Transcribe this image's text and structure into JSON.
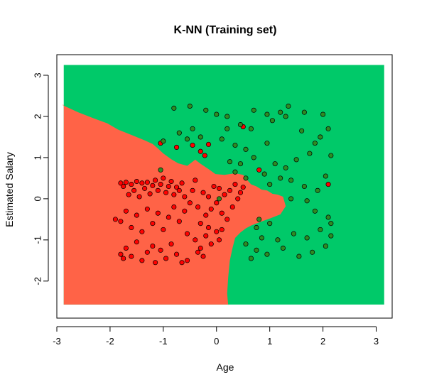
{
  "chart_data": {
    "type": "scatter",
    "title": "K-NN (Training set)",
    "xlabel": "Age",
    "ylabel": "Estimated Salary",
    "xlim": [
      -3,
      3.3
    ],
    "ylim": [
      -2.9,
      3.5
    ],
    "x_ticks": [
      -3,
      -2,
      -1,
      0,
      1,
      2,
      3
    ],
    "y_ticks": [
      -2,
      -1,
      0,
      1,
      2,
      3
    ],
    "x_tick_labels": [
      "-3",
      "-2",
      "-1",
      "0",
      "1",
      "2",
      "3"
    ],
    "y_tick_labels": [
      "-2",
      "-1",
      "0",
      "1",
      "2",
      "3"
    ],
    "grid": false,
    "legend": "none",
    "background_regions": {
      "region_0_color": "#ff6347",
      "region_1_color": "#00c969",
      "boundary": [
        [
          -2.9,
          2.28
        ],
        [
          -2.6,
          2.1
        ],
        [
          -2.3,
          1.95
        ],
        [
          -2.05,
          1.83
        ],
        [
          -1.85,
          1.68
        ],
        [
          -1.6,
          1.55
        ],
        [
          -1.35,
          1.42
        ],
        [
          -1.2,
          1.33
        ],
        [
          -1.1,
          1.22
        ],
        [
          -1.0,
          1.1
        ],
        [
          -0.85,
          0.96
        ],
        [
          -0.72,
          0.86
        ],
        [
          -0.55,
          0.8
        ],
        [
          -0.45,
          0.9
        ],
        [
          -0.4,
          0.95
        ],
        [
          -0.3,
          0.85
        ],
        [
          -0.15,
          0.72
        ],
        [
          -0.02,
          0.6
        ],
        [
          0.15,
          0.58
        ],
        [
          0.35,
          0.62
        ],
        [
          0.5,
          0.58
        ],
        [
          0.58,
          0.45
        ],
        [
          0.65,
          0.35
        ],
        [
          0.75,
          0.3
        ],
        [
          0.85,
          0.22
        ],
        [
          0.95,
          0.2
        ],
        [
          1.05,
          0.12
        ],
        [
          1.15,
          0.1
        ],
        [
          1.25,
          0.05
        ],
        [
          1.3,
          -0.18
        ],
        [
          1.2,
          -0.38
        ],
        [
          1.0,
          -0.48
        ],
        [
          0.85,
          -0.55
        ],
        [
          0.65,
          -0.65
        ],
        [
          0.55,
          -0.72
        ],
        [
          0.45,
          -0.82
        ],
        [
          0.35,
          -0.95
        ],
        [
          0.3,
          -1.2
        ],
        [
          0.25,
          -1.5
        ],
        [
          0.22,
          -1.9
        ],
        [
          0.2,
          -2.3
        ],
        [
          0.22,
          -2.6
        ]
      ],
      "region_x_extent": [
        -2.87,
        3.15
      ],
      "region_y_extent": [
        -2.57,
        3.25
      ]
    },
    "series": [
      {
        "point_color": "#ff0000",
        "points": [
          [
            -1.8,
            0.38
          ],
          [
            -1.75,
            0.3
          ],
          [
            -1.7,
            0.4
          ],
          [
            -1.65,
            0.1
          ],
          [
            -1.6,
            0.35
          ],
          [
            -1.55,
            0.2
          ],
          [
            -1.5,
            0.42
          ],
          [
            -1.45,
            0.05
          ],
          [
            -1.4,
            0.38
          ],
          [
            -1.35,
            0.25
          ],
          [
            -1.3,
            0.4
          ],
          [
            -1.25,
            0.12
          ],
          [
            -1.2,
            0.32
          ],
          [
            -1.15,
            0.45
          ],
          [
            -1.1,
            0.2
          ],
          [
            -1.05,
            0.35
          ],
          [
            -1.0,
            0.5
          ],
          [
            -0.95,
            0.15
          ],
          [
            -0.9,
            0.3
          ],
          [
            -0.85,
            0.42
          ],
          [
            -0.8,
            0.1
          ],
          [
            -0.75,
            0.28
          ],
          [
            -0.7,
            0.2
          ],
          [
            -0.65,
            0.38
          ],
          [
            -0.6,
            0.05
          ],
          [
            -1.8,
            -0.55
          ],
          [
            -1.7,
            -0.3
          ],
          [
            -1.6,
            -0.7
          ],
          [
            -1.5,
            -0.4
          ],
          [
            -1.4,
            -0.8
          ],
          [
            -1.3,
            -0.25
          ],
          [
            -1.2,
            -0.6
          ],
          [
            -1.1,
            -0.35
          ],
          [
            -1.0,
            -0.75
          ],
          [
            -0.9,
            -0.45
          ],
          [
            -0.8,
            -0.2
          ],
          [
            -0.7,
            -0.55
          ],
          [
            -0.6,
            -0.3
          ],
          [
            -0.55,
            -0.85
          ],
          [
            -0.5,
            -0.1
          ],
          [
            -1.8,
            -1.35
          ],
          [
            -1.75,
            -1.45
          ],
          [
            -1.7,
            -1.2
          ],
          [
            -1.6,
            -1.4
          ],
          [
            -1.5,
            -1.05
          ],
          [
            -1.4,
            -1.5
          ],
          [
            -1.3,
            -1.3
          ],
          [
            -1.2,
            -1.15
          ],
          [
            -1.15,
            -1.55
          ],
          [
            -1.05,
            -1.25
          ],
          [
            -0.95,
            -1.45
          ],
          [
            -0.85,
            -1.1
          ],
          [
            -0.75,
            -1.35
          ],
          [
            -0.65,
            -1.55
          ],
          [
            -0.55,
            -1.5
          ],
          [
            -0.45,
            0.2
          ],
          [
            -0.4,
            0.45
          ],
          [
            -0.35,
            -0.2
          ],
          [
            -0.3,
            -0.6
          ],
          [
            -0.25,
            0.15
          ],
          [
            -0.2,
            -0.4
          ],
          [
            -0.15,
            0.05
          ],
          [
            -0.1,
            -0.25
          ],
          [
            -0.05,
            0.3
          ],
          [
            0.0,
            -0.1
          ],
          [
            0.05,
            0.25
          ],
          [
            0.1,
            -0.35
          ],
          [
            0.15,
            0.1
          ],
          [
            0.2,
            -0.5
          ],
          [
            0.25,
            0.2
          ],
          [
            0.3,
            -0.2
          ],
          [
            0.35,
            0.35
          ],
          [
            0.4,
            0.0
          ],
          [
            0.45,
            0.15
          ],
          [
            0.5,
            0.28
          ],
          [
            -0.4,
            -1.0
          ],
          [
            -0.3,
            -1.2
          ],
          [
            -0.2,
            -0.9
          ],
          [
            -0.1,
            -1.1
          ],
          [
            0.0,
            -0.8
          ],
          [
            0.05,
            -1.0
          ],
          [
            0.1,
            -0.75
          ],
          [
            -0.35,
            -1.3
          ],
          [
            -0.25,
            -1.4
          ],
          [
            -0.15,
            -0.7
          ],
          [
            -0.45,
            1.3
          ],
          [
            -0.3,
            1.15
          ],
          [
            -0.22,
            1.05
          ],
          [
            -0.15,
            1.32
          ],
          [
            -1.05,
            1.35
          ],
          [
            -0.75,
            1.25
          ],
          [
            0.5,
            1.75
          ],
          [
            0.8,
            0.7
          ],
          [
            2.1,
            0.35
          ],
          [
            -1.9,
            -0.5
          ]
        ]
      },
      {
        "point_color": "#2e8b22",
        "points": [
          [
            -0.8,
            2.2
          ],
          [
            -0.5,
            2.25
          ],
          [
            -0.2,
            2.15
          ],
          [
            0.0,
            2.05
          ],
          [
            0.2,
            2.0
          ],
          [
            0.45,
            1.8
          ],
          [
            0.65,
            1.7
          ],
          [
            0.95,
            2.05
          ],
          [
            1.05,
            1.9
          ],
          [
            1.2,
            2.1
          ],
          [
            1.35,
            2.25
          ],
          [
            1.6,
            1.65
          ],
          [
            1.85,
            1.35
          ],
          [
            2.0,
            2.05
          ],
          [
            2.1,
            1.7
          ],
          [
            -0.7,
            1.6
          ],
          [
            -0.3,
            1.5
          ],
          [
            0.1,
            1.45
          ],
          [
            0.35,
            1.3
          ],
          [
            0.55,
            1.2
          ],
          [
            0.7,
            1.0
          ],
          [
            0.95,
            1.35
          ],
          [
            1.1,
            0.85
          ],
          [
            1.3,
            0.75
          ],
          [
            1.5,
            0.95
          ],
          [
            1.75,
            1.1
          ],
          [
            2.15,
            1.05
          ],
          [
            -1.0,
            1.4
          ],
          [
            -0.55,
            1.45
          ],
          [
            0.25,
            0.9
          ],
          [
            0.45,
            0.85
          ],
          [
            0.9,
            0.6
          ],
          [
            1.2,
            0.5
          ],
          [
            1.4,
            0.45
          ],
          [
            1.65,
            0.3
          ],
          [
            1.9,
            0.2
          ],
          [
            2.05,
            0.55
          ],
          [
            1.0,
            0.35
          ],
          [
            1.4,
            0.0
          ],
          [
            1.7,
            -0.05
          ],
          [
            1.85,
            -0.3
          ],
          [
            2.1,
            -0.45
          ],
          [
            1.0,
            -0.6
          ],
          [
            0.75,
            -0.7
          ],
          [
            0.85,
            -0.95
          ],
          [
            1.15,
            -1.0
          ],
          [
            1.45,
            -0.85
          ],
          [
            1.7,
            -0.95
          ],
          [
            1.95,
            -0.75
          ],
          [
            2.15,
            -0.9
          ],
          [
            0.55,
            -1.1
          ],
          [
            0.75,
            -1.25
          ],
          [
            0.95,
            -1.35
          ],
          [
            1.25,
            -1.2
          ],
          [
            1.55,
            -1.4
          ],
          [
            1.8,
            -1.3
          ],
          [
            2.05,
            -1.15
          ],
          [
            2.15,
            -0.6
          ],
          [
            0.65,
            -1.45
          ],
          [
            0.8,
            -0.5
          ],
          [
            0.7,
            2.15
          ],
          [
            1.3,
            2.0
          ],
          [
            1.65,
            2.1
          ],
          [
            1.95,
            1.5
          ],
          [
            0.2,
            1.7
          ],
          [
            -1.05,
            0.7
          ],
          [
            0.55,
            0.5
          ],
          [
            0.35,
            0.65
          ],
          [
            -0.45,
            1.7
          ],
          [
            0.05,
            0.0
          ]
        ]
      }
    ]
  }
}
